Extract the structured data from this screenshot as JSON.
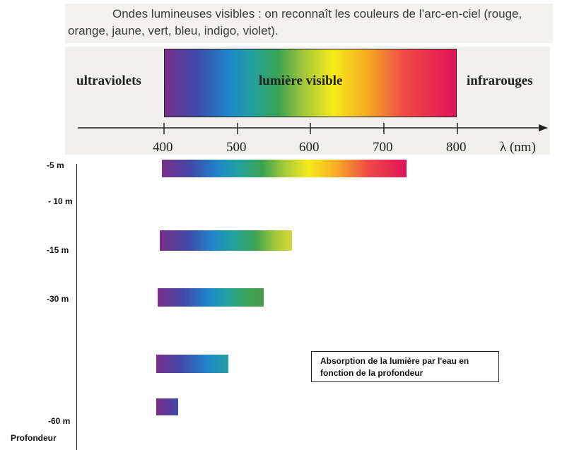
{
  "caption": {
    "text": "Ondes lumineuses visibles : on reconnaît les couleurs de l’arc-en-ciel (rouge, orange, jaune, vert, bleu, indigo, violet)."
  },
  "spectrum": {
    "regions": {
      "ultraviolet": "ultraviolets",
      "visible": "lumière visible",
      "infrared": "infrarouges"
    },
    "axis_unit": "λ (nm)",
    "ticks": [
      "400",
      "500",
      "600",
      "700",
      "800"
    ],
    "visible_range_nm": [
      400,
      800
    ],
    "gradient_colors": [
      "#7a2e8c",
      "#3f4aa8",
      "#1f86c9",
      "#22a0a0",
      "#3aa352",
      "#a5c93a",
      "#f6ea1c",
      "#f6a823",
      "#f04c45",
      "#e0135a"
    ]
  },
  "depth": {
    "axis_title": "Profondeur",
    "labels": [
      "-5 m",
      "- 10 m",
      "-15 m",
      "-30 m",
      "-60 m"
    ],
    "bars": [
      {
        "depth": "-5 m",
        "max_wavelength_nm": 730
      },
      {
        "depth": "-15 m",
        "max_wavelength_nm": 575
      },
      {
        "depth": "-30 m",
        "max_wavelength_nm": 535
      },
      {
        "depth": "",
        "max_wavelength_nm": 485
      },
      {
        "depth": "",
        "max_wavelength_nm": 415
      }
    ]
  },
  "legend": {
    "line1": "Absorption de la lumière par l'eau en",
    "line2": "fonction de la profondeur"
  }
}
